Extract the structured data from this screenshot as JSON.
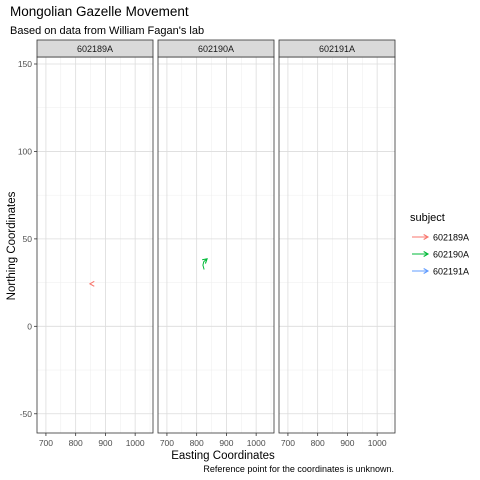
{
  "chart_data": {
    "type": "line",
    "title": "Mongolian Gazelle Movement",
    "subtitle": "Based on data from William Fagan's lab",
    "xlabel": "Easting Coordinates",
    "ylabel": "Northing Coordinates",
    "caption": "Reference point for the coordinates is unknown.",
    "xlim": [
      670,
      1060
    ],
    "ylim": [
      -61,
      154
    ],
    "x_ticks": [
      700,
      800,
      900,
      1000
    ],
    "y_ticks": [
      -50,
      0,
      50,
      100,
      150
    ],
    "grid": true,
    "legend": {
      "title": "subject",
      "position": "right",
      "entries": [
        "602189A",
        "602190A",
        "602191A"
      ]
    },
    "facets": [
      "602189A",
      "602190A",
      "602191A"
    ],
    "series": [
      {
        "name": "602189A",
        "color": "#F8766D",
        "facet": 0,
        "arrow": "open-head",
        "x": [
          858,
          848
        ],
        "y": [
          24.3,
          24.3
        ]
      },
      {
        "name": "602190A",
        "color": "#00BA38",
        "facet": 1,
        "arrow": "open-head",
        "x": [
          825,
          821,
          824,
          835
        ],
        "y": [
          32.5,
          35.0,
          37.0,
          38.6
        ]
      },
      {
        "name": "602191A",
        "color": "#619CFF",
        "facet": 2,
        "arrow": "open-head",
        "x": [],
        "y": []
      }
    ]
  }
}
